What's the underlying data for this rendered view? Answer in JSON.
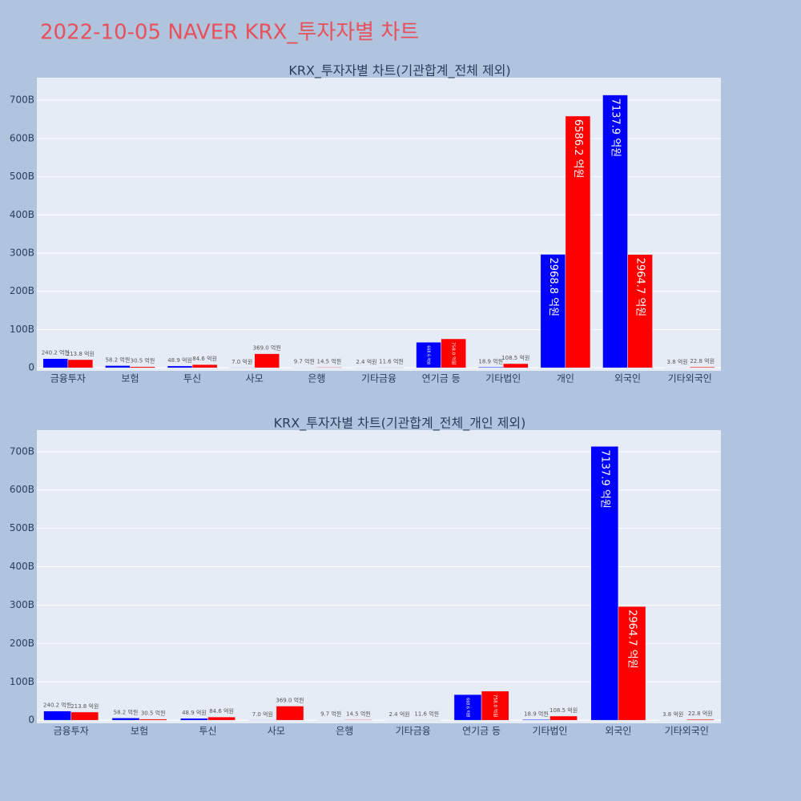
{
  "title": "2022-10-05 NAVER KRX_투자자별 차트",
  "chart_data": [
    {
      "type": "bar",
      "title": "KRX_투자자별 차트(기관합계_전체 제외)",
      "categories": [
        "금융투자",
        "보험",
        "투신",
        "사모",
        "은행",
        "기타금융",
        "연기금 등",
        "기타법인",
        "개인",
        "외국인",
        "기타외국인"
      ],
      "series": [
        {
          "color": "#0000ff",
          "values": [
            24.02,
            5.82,
            4.89,
            0.7,
            0.97,
            0.24,
            66.86,
            1.89,
            296.88,
            713.79,
            0.38
          ],
          "value_labels": [
            "240.2 억원",
            "58.2 억원",
            "48.9 억원",
            "7.0 억원",
            "9.7 억원",
            "2.4 억원",
            "668.6 억원",
            "18.9 억원",
            "2968.8 억원",
            "7137.9 억원",
            "3.8 억원"
          ]
        },
        {
          "color": "#ff0000",
          "values": [
            21.38,
            3.05,
            8.46,
            36.9,
            1.45,
            1.16,
            75.8,
            10.85,
            658.62,
            296.47,
            2.28
          ],
          "value_labels": [
            "213.8 억원",
            "30.5 억원",
            "84.6 억원",
            "369.0 억원",
            "14.5 억원",
            "11.6 억원",
            "758.0 억원",
            "108.5 억원",
            "6586.2 억원",
            "2964.7 억원",
            "22.8 억원"
          ]
        }
      ],
      "ylim": [
        -8,
        759
      ],
      "yticks": [
        0,
        {
          "value": 100,
          "label": "100B"
        },
        {
          "value": 200,
          "label": "200B"
        },
        {
          "value": 300,
          "label": "300B"
        },
        {
          "value": 400,
          "label": "400B"
        },
        {
          "value": 500,
          "label": "500B"
        },
        {
          "value": 600,
          "label": "600B"
        },
        {
          "value": 700,
          "label": "700B"
        }
      ],
      "grid": true
    },
    {
      "type": "bar",
      "title": "KRX_투자자별 차트(기관합계_전체_개인 제외)",
      "categories": [
        "금융투자",
        "보험",
        "투신",
        "사모",
        "은행",
        "기타금융",
        "연기금 등",
        "기타법인",
        "외국인",
        "기타외국인"
      ],
      "series": [
        {
          "color": "#0000ff",
          "values": [
            24.02,
            5.82,
            4.89,
            0.7,
            0.97,
            0.24,
            66.86,
            1.89,
            713.79,
            0.38
          ],
          "value_labels": [
            "240.2 억원",
            "58.2 억원",
            "48.9 억원",
            "7.0 억원",
            "9.7 억원",
            "2.4 억원",
            "668.6 억원",
            "18.9 억원",
            "7137.9 억원",
            "3.8 억원"
          ]
        },
        {
          "color": "#ff0000",
          "values": [
            21.38,
            3.05,
            8.46,
            36.9,
            1.45,
            1.16,
            75.8,
            10.85,
            296.47,
            2.28
          ],
          "value_labels": [
            "213.8 억원",
            "30.5 억원",
            "84.6 억원",
            "369.0 억원",
            "14.5 억원",
            "11.6 억원",
            "758.0 억원",
            "108.5 억원",
            "2964.7 억원",
            "22.8 억원"
          ]
        }
      ],
      "ylim": [
        -8,
        756
      ],
      "yticks": [
        0,
        {
          "value": 100,
          "label": "100B"
        },
        {
          "value": 200,
          "label": "200B"
        },
        {
          "value": 300,
          "label": "300B"
        },
        {
          "value": 400,
          "label": "400B"
        },
        {
          "value": 500,
          "label": "500B"
        },
        {
          "value": 600,
          "label": "600B"
        },
        {
          "value": 700,
          "label": "700B"
        }
      ],
      "grid": true
    }
  ]
}
